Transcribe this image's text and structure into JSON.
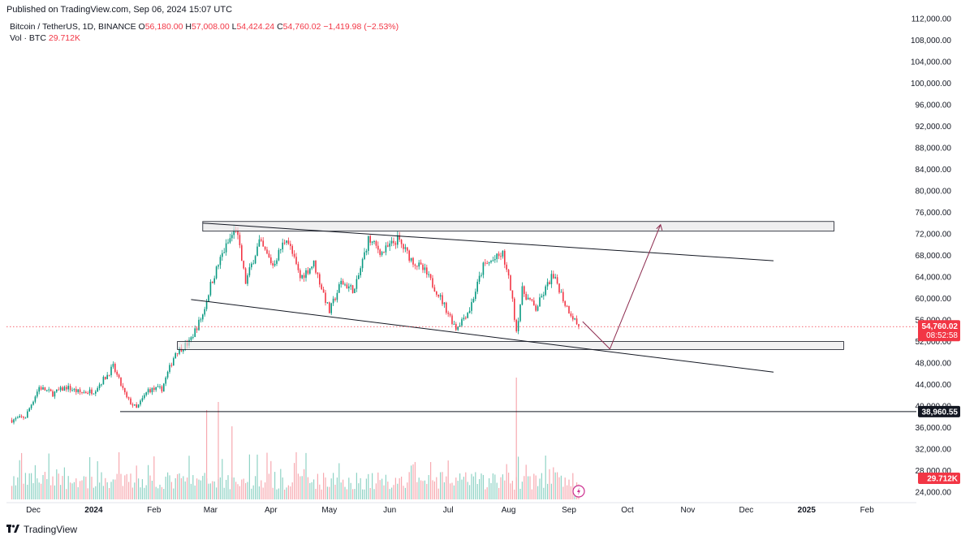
{
  "header": {
    "published": "Published on TradingView.com, Sep 06, 2024 15:07 UTC"
  },
  "legend": {
    "symbol": "Bitcoin / TetherUS, 1D, BINANCE",
    "o_label": "O",
    "o": "56,180.00",
    "h_label": "H",
    "h": "57,008.00",
    "l_label": "L",
    "l": "54,424.24",
    "c_label": "C",
    "c": "54,760.02",
    "change": "−1,419.98 (−2.53%)",
    "vol_label": "Vol · BTC",
    "vol": "29.712K"
  },
  "footer": {
    "brand": "TradingView"
  },
  "colors": {
    "up": "#089981",
    "down": "#f23645",
    "zone_fill": "#e8e8ea",
    "line": "#131722",
    "projection": "#8c2a4e"
  },
  "chart_data": {
    "type": "candlestick",
    "symbol": "BTCUSDT",
    "interval": "1D",
    "price_axis": {
      "ticks": [
        "112,000.00",
        "108,000.00",
        "104,000.00",
        "100,000.00",
        "96,000.00",
        "92,000.00",
        "88,000.00",
        "84,000.00",
        "80,000.00",
        "76,000.00",
        "72,000.00",
        "68,000.00",
        "64,000.00",
        "60,000.00",
        "56,000.00",
        "52,000.00",
        "48,000.00",
        "44,000.00",
        "40,000.00",
        "36,000.00",
        "32,000.00",
        "28,000.00",
        "24,000.00"
      ],
      "range": [
        22000,
        112500
      ]
    },
    "time_axis": {
      "ticks": [
        "Dec",
        "2024",
        "Feb",
        "Mar",
        "Apr",
        "May",
        "Jun",
        "Jul",
        "Aug",
        "Sep",
        "Oct",
        "Nov",
        "Dec",
        "2025",
        "Feb"
      ]
    },
    "last_price_label": "54,760.02",
    "countdown_label": "08:52:58",
    "horizontal_line_label": "38,960.55",
    "volume_label": "29.712K",
    "price_path": [
      [
        "2023-11-20",
        37400
      ],
      [
        "2023-11-27",
        38000
      ],
      [
        "2023-12-04",
        43500
      ],
      [
        "2023-12-11",
        42300
      ],
      [
        "2023-12-18",
        43500
      ],
      [
        "2023-12-25",
        42500
      ],
      [
        "2024-01-01",
        42800
      ],
      [
        "2024-01-08",
        45800
      ],
      [
        "2024-01-11",
        47300
      ],
      [
        "2024-01-18",
        41400
      ],
      [
        "2024-01-23",
        39500
      ],
      [
        "2024-01-29",
        43000
      ],
      [
        "2024-02-05",
        43200
      ],
      [
        "2024-02-12",
        50000
      ],
      [
        "2024-02-19",
        51800
      ],
      [
        "2024-02-26",
        57000
      ],
      [
        "2024-03-01",
        62500
      ],
      [
        "2024-03-07",
        68200
      ],
      [
        "2024-03-14",
        73200
      ],
      [
        "2024-03-19",
        63000
      ],
      [
        "2024-03-26",
        70500
      ],
      [
        "2024-04-02",
        66200
      ],
      [
        "2024-04-09",
        71500
      ],
      [
        "2024-04-16",
        63800
      ],
      [
        "2024-04-23",
        66500
      ],
      [
        "2024-05-01",
        57500
      ],
      [
        "2024-05-07",
        63000
      ],
      [
        "2024-05-14",
        61500
      ],
      [
        "2024-05-21",
        71000
      ],
      [
        "2024-05-28",
        68500
      ],
      [
        "2024-06-05",
        71000
      ],
      [
        "2024-06-12",
        67300
      ],
      [
        "2024-06-19",
        65000
      ],
      [
        "2024-06-26",
        60800
      ],
      [
        "2024-07-05",
        54500
      ],
      [
        "2024-07-12",
        58000
      ],
      [
        "2024-07-19",
        66000
      ],
      [
        "2024-07-29",
        68200
      ],
      [
        "2024-08-02",
        62000
      ],
      [
        "2024-08-05",
        54000
      ],
      [
        "2024-08-08",
        61500
      ],
      [
        "2024-08-15",
        58000
      ],
      [
        "2024-08-23",
        64000
      ],
      [
        "2024-08-26",
        62800
      ],
      [
        "2024-08-30",
        59000
      ],
      [
        "2024-09-06",
        54760
      ]
    ],
    "annotations": {
      "resistance_zone": [
        72500,
        74300
      ],
      "support_zone": [
        50500,
        52000
      ],
      "horizontal_line": 38960.55,
      "upper_trendline": [
        [
          "2024-02-26",
          74000
        ],
        [
          "2024-12-15",
          67000
        ]
      ],
      "lower_trendline": [
        [
          "2024-02-20",
          59800
        ],
        [
          "2024-12-15",
          46300
        ]
      ],
      "projection_path": [
        [
          "2024-09-08",
          55700
        ],
        [
          "2024-09-22",
          50600
        ],
        [
          "2024-10-18",
          73700
        ]
      ]
    }
  }
}
